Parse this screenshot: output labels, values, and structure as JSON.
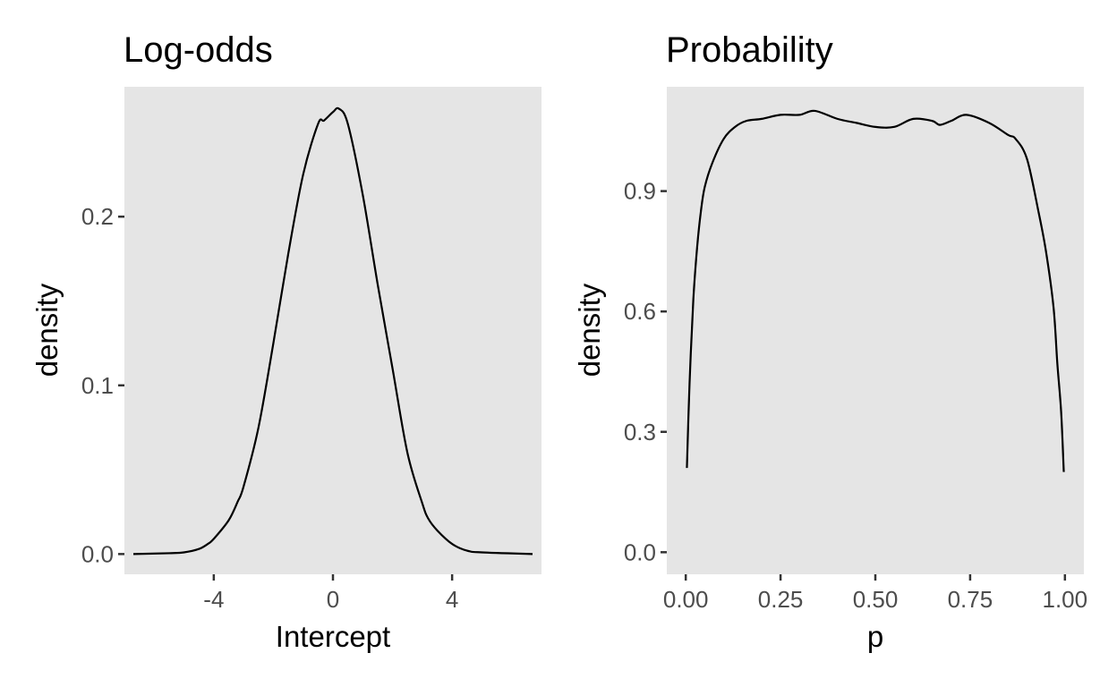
{
  "chart_data": [
    {
      "type": "line",
      "title": "Log-odds",
      "xlabel": "Intercept",
      "ylabel": "density",
      "xlim": [
        -7.0,
        7.0
      ],
      "ylim": [
        -0.012,
        0.277
      ],
      "xticks": [
        -4,
        0,
        4
      ],
      "xtick_labels": [
        "-4",
        "0",
        "4"
      ],
      "yticks": [
        0.0,
        0.1,
        0.2
      ],
      "ytick_labels": [
        "0.0",
        "0.1",
        "0.2"
      ],
      "grid": false,
      "background": "#e5e5e5",
      "series": [
        {
          "color": "#000000",
          "x": [
            -6.7,
            -5.5,
            -5.0,
            -4.5,
            -4.2,
            -4.0,
            -3.5,
            -3.2,
            -3.0,
            -2.5,
            -2.0,
            -1.5,
            -1.0,
            -0.5,
            -0.3,
            0.0,
            0.2,
            0.5,
            1.0,
            1.5,
            2.0,
            2.5,
            3.0,
            3.2,
            3.5,
            4.0,
            4.5,
            5.0,
            6.7
          ],
          "y": [
            0.0,
            0.0005,
            0.001,
            0.003,
            0.006,
            0.009,
            0.02,
            0.031,
            0.04,
            0.075,
            0.125,
            0.178,
            0.225,
            0.255,
            0.257,
            0.262,
            0.264,
            0.255,
            0.213,
            0.16,
            0.11,
            0.06,
            0.03,
            0.021,
            0.014,
            0.006,
            0.002,
            0.001,
            0.0
          ]
        }
      ]
    },
    {
      "type": "line",
      "title": "Probability",
      "xlabel": "p",
      "ylabel": "density",
      "xlim": [
        -0.05,
        1.05
      ],
      "ylim": [
        -0.055,
        1.16
      ],
      "xticks": [
        0.0,
        0.25,
        0.5,
        0.75,
        1.0
      ],
      "xtick_labels": [
        "0.00",
        "0.25",
        "0.50",
        "0.75",
        "1.00"
      ],
      "yticks": [
        0.0,
        0.3,
        0.6,
        0.9
      ],
      "ytick_labels": [
        "0.0",
        "0.3",
        "0.6",
        "0.9"
      ],
      "grid": false,
      "background": "#e5e5e5",
      "series": [
        {
          "color": "#000000",
          "x": [
            0.003,
            0.01,
            0.02,
            0.03,
            0.04,
            0.05,
            0.07,
            0.1,
            0.13,
            0.16,
            0.2,
            0.25,
            0.3,
            0.34,
            0.4,
            0.45,
            0.5,
            0.55,
            0.6,
            0.65,
            0.67,
            0.7,
            0.74,
            0.8,
            0.85,
            0.87,
            0.9,
            0.93,
            0.95,
            0.97,
            0.98,
            0.99,
            0.997
          ],
          "y": [
            0.21,
            0.42,
            0.63,
            0.76,
            0.85,
            0.91,
            0.97,
            1.03,
            1.06,
            1.075,
            1.08,
            1.09,
            1.09,
            1.1,
            1.08,
            1.07,
            1.06,
            1.06,
            1.08,
            1.075,
            1.065,
            1.075,
            1.09,
            1.07,
            1.04,
            1.03,
            0.98,
            0.85,
            0.75,
            0.61,
            0.47,
            0.35,
            0.2
          ]
        }
      ]
    }
  ]
}
